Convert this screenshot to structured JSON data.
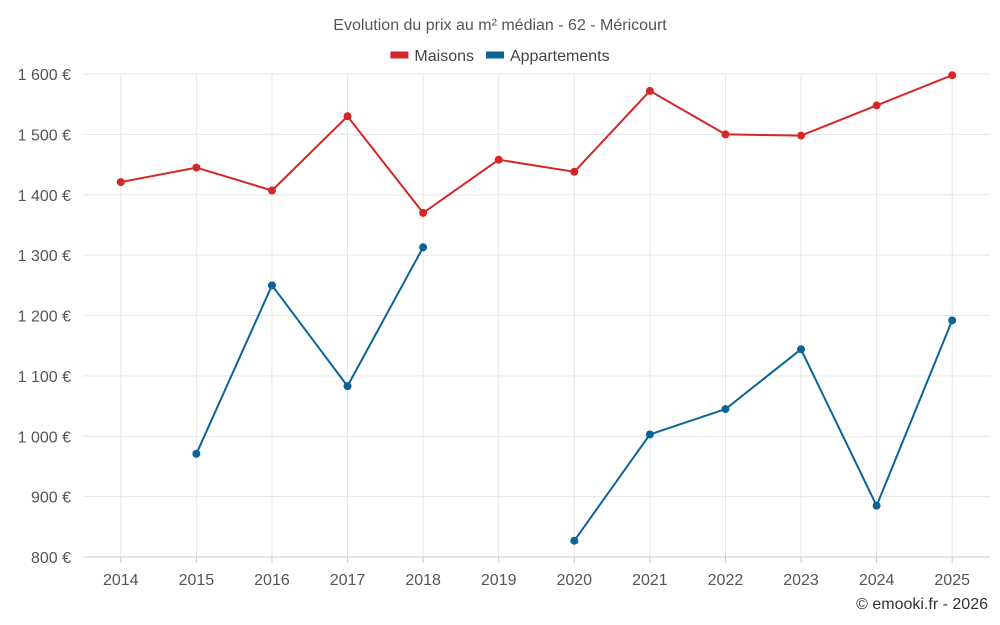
{
  "chart_data": {
    "type": "line",
    "title": "Evolution du prix au m² médian - 62 - Méricourt",
    "xlabel": "",
    "ylabel": "",
    "categories": [
      "2014",
      "2015",
      "2016",
      "2017",
      "2018",
      "2019",
      "2020",
      "2021",
      "2022",
      "2023",
      "2024",
      "2025"
    ],
    "ylim": [
      800,
      1600
    ],
    "yticks": [
      {
        "value": 1600,
        "label": "1 600 €"
      },
      {
        "value": 1500,
        "label": "1 500 €"
      },
      {
        "value": 1400,
        "label": "1 400 €"
      },
      {
        "value": 1300,
        "label": "1 300 €"
      },
      {
        "value": 1200,
        "label": "1 200 €"
      },
      {
        "value": 1100,
        "label": "1 100 €"
      },
      {
        "value": 1000,
        "label": "1 000 €"
      },
      {
        "value": 900,
        "label": "900 €"
      },
      {
        "value": 800,
        "label": "800 €"
      }
    ],
    "grid": true,
    "legend_position": "top-center",
    "series": [
      {
        "name": "Maisons",
        "color": "#d62728",
        "values": [
          1421,
          1445,
          1407,
          1530,
          1370,
          1458,
          1438,
          1572,
          1500,
          1498,
          1548,
          1598
        ]
      },
      {
        "name": "Appartements",
        "color": "#0a6496",
        "values": [
          null,
          971,
          1250,
          1083,
          1313,
          null,
          827,
          1003,
          1045,
          1144,
          885,
          1192
        ]
      }
    ]
  },
  "credit": "© emooki.fr - 2026"
}
